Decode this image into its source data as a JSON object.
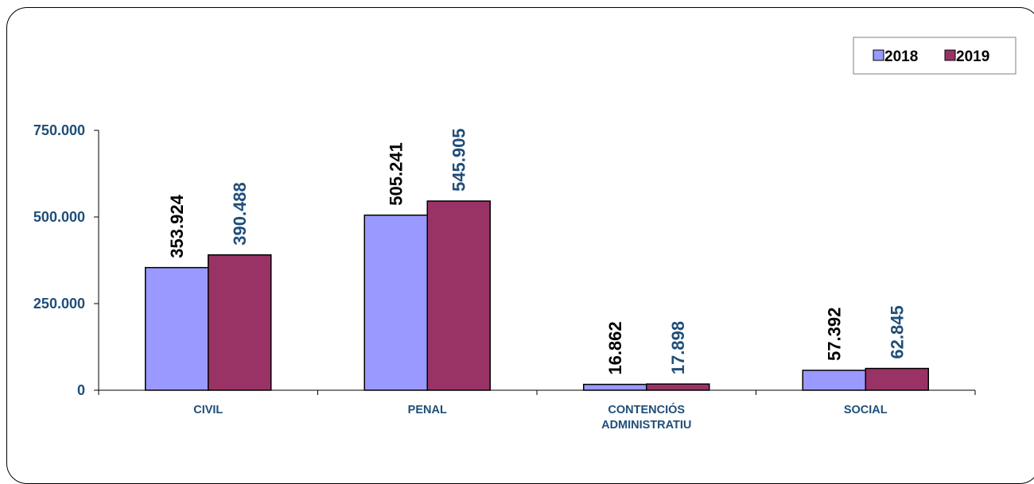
{
  "chart_data": {
    "type": "bar",
    "categories": [
      [
        "CIVIL"
      ],
      [
        "PENAL"
      ],
      [
        "CONTENCIÓS",
        "ADMINISTRATIU"
      ],
      [
        "SOCIAL"
      ]
    ],
    "series": [
      {
        "name": "2018",
        "values": [
          353924,
          505241,
          16862,
          57392
        ],
        "labels": [
          "353.924",
          "505.241",
          "16.862",
          "57.392"
        ],
        "color": "#9999ff",
        "label_color": "#000000"
      },
      {
        "name": "2019",
        "values": [
          390488,
          545905,
          17898,
          62845
        ],
        "labels": [
          "390.488",
          "545.905",
          "17.898",
          "62.845"
        ],
        "color": "#993366",
        "label_color": "#1f4e79"
      }
    ],
    "yticks": [
      0,
      250000,
      500000,
      750000
    ],
    "ytick_labels": [
      "0",
      "250.000",
      "500.000",
      "750.000"
    ],
    "ylim": [
      0,
      750000
    ],
    "grid": false,
    "legend": "top-right",
    "title": "",
    "xlabel": "",
    "ylabel": ""
  }
}
